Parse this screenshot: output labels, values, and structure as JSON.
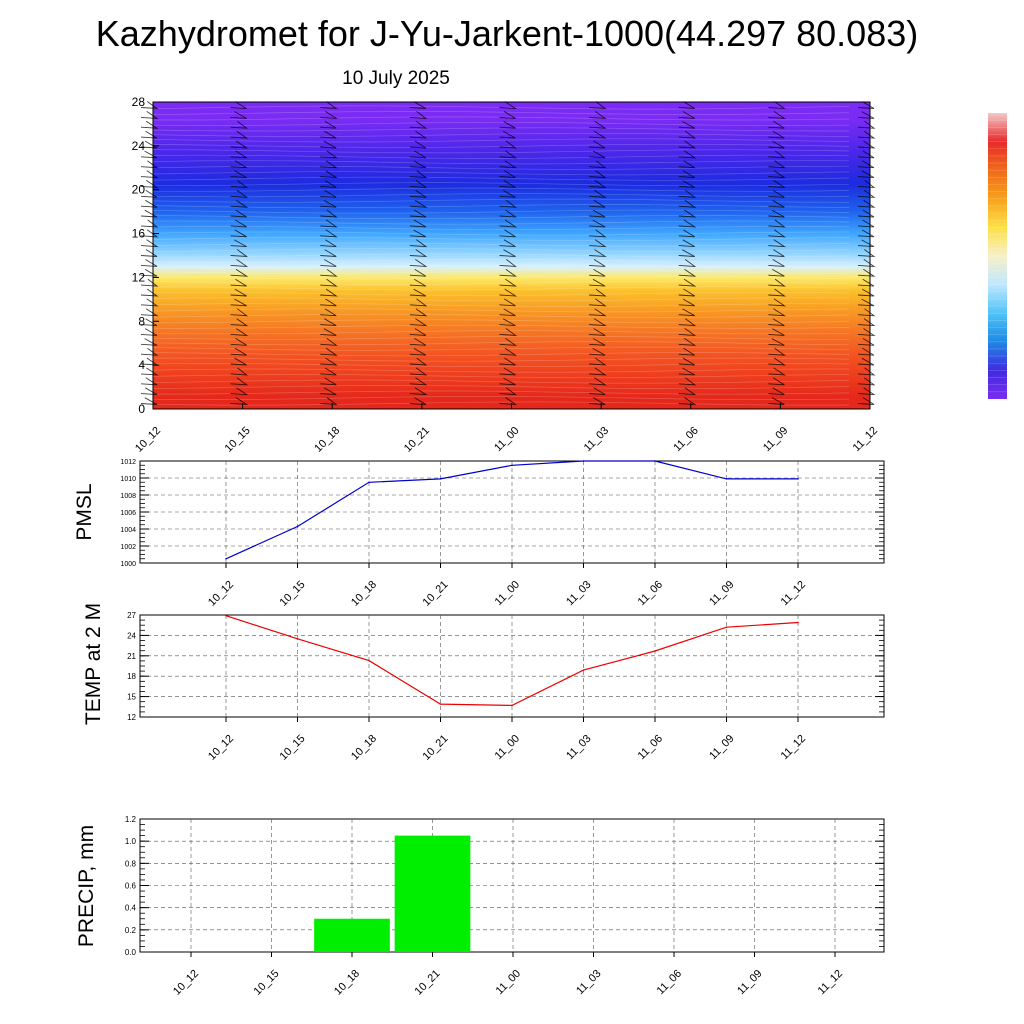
{
  "title": "Kazhydromet for J-Yu-Jarkent-1000(44.297 80.083)",
  "subtitle": "10 July 2025",
  "colorbar": {
    "colors": [
      "#f2c9c9",
      "#e82a2a",
      "#f06a1a",
      "#f7a11a",
      "#fde047",
      "#f7f0c8",
      "#bfe7ff",
      "#4fc3f7",
      "#1e88e5",
      "#3f2be0",
      "#7a2cf2"
    ]
  },
  "chart_data": [
    {
      "type": "heatmap",
      "name": "cross-section",
      "x_ticks": [
        "10_12",
        "10_15",
        "10_18",
        "10_21",
        "11_00",
        "11_03",
        "11_06",
        "11_09",
        "11_12"
      ],
      "ylim": [
        0,
        28
      ],
      "y_ticks": [
        0,
        4,
        8,
        12,
        16,
        20,
        24,
        28
      ],
      "color_bands": [
        {
          "y0": 0,
          "y1": 2,
          "color": "#e4281c"
        },
        {
          "y0": 2,
          "y1": 4,
          "color": "#ee3d1e"
        },
        {
          "y0": 4,
          "y1": 6,
          "color": "#f35522"
        },
        {
          "y0": 6,
          "y1": 8,
          "color": "#f57524"
        },
        {
          "y0": 8,
          "y1": 10,
          "color": "#f89a24"
        },
        {
          "y0": 10,
          "y1": 11.5,
          "color": "#fbc02a"
        },
        {
          "y0": 11.5,
          "y1": 12.5,
          "color": "#fde96a"
        },
        {
          "y0": 12.5,
          "y1": 13.5,
          "color": "#d8f0ff"
        },
        {
          "y0": 13.5,
          "y1": 15,
          "color": "#8fd3ff"
        },
        {
          "y0": 15,
          "y1": 17,
          "color": "#3fa6ff"
        },
        {
          "y0": 17,
          "y1": 19,
          "color": "#1f63ee"
        },
        {
          "y0": 19,
          "y1": 22,
          "color": "#1c2ce0"
        },
        {
          "y0": 22,
          "y1": 25,
          "color": "#4b27ea"
        },
        {
          "y0": 25,
          "y1": 28,
          "color": "#7b2cf4"
        }
      ]
    },
    {
      "type": "line",
      "ylabel": "PMSL",
      "categories": [
        "10_12",
        "10_15",
        "10_18",
        "10_21",
        "11_00",
        "11_03",
        "11_06",
        "11_09",
        "11_12"
      ],
      "values": [
        1000.5,
        1004.3,
        1009.5,
        1009.9,
        1011.5,
        1012.0,
        1012.0,
        1009.9,
        1009.9
      ],
      "ylim": [
        1000,
        1012
      ],
      "y_ticks": [
        1000,
        1002,
        1004,
        1006,
        1008,
        1010,
        1012
      ],
      "color": "#0000cc"
    },
    {
      "type": "line",
      "ylabel": "TEMP at 2 M",
      "categories": [
        "10_12",
        "10_15",
        "10_18",
        "10_21",
        "11_00",
        "11_03",
        "11_06",
        "11_09",
        "11_12"
      ],
      "values": [
        26.9,
        23.5,
        20.3,
        13.9,
        13.7,
        18.9,
        21.7,
        25.2,
        25.9
      ],
      "ylim": [
        12,
        27
      ],
      "y_ticks": [
        12,
        15,
        18,
        21,
        24,
        27
      ],
      "color": "#ee0000"
    },
    {
      "type": "bar",
      "ylabel": "PRECIP, mm",
      "categories": [
        "10_12",
        "10_15",
        "10_18",
        "10_21",
        "11_00",
        "11_03",
        "11_06",
        "11_09",
        "11_12"
      ],
      "values": [
        0,
        0,
        0.3,
        1.05,
        0,
        0,
        0,
        0,
        0
      ],
      "ylim": [
        0,
        1.2
      ],
      "y_ticks": [
        "0.0",
        "0.2",
        "0.4",
        "0.6",
        "0.8",
        "1.0",
        "1.2"
      ],
      "color": "#00ee00"
    }
  ]
}
